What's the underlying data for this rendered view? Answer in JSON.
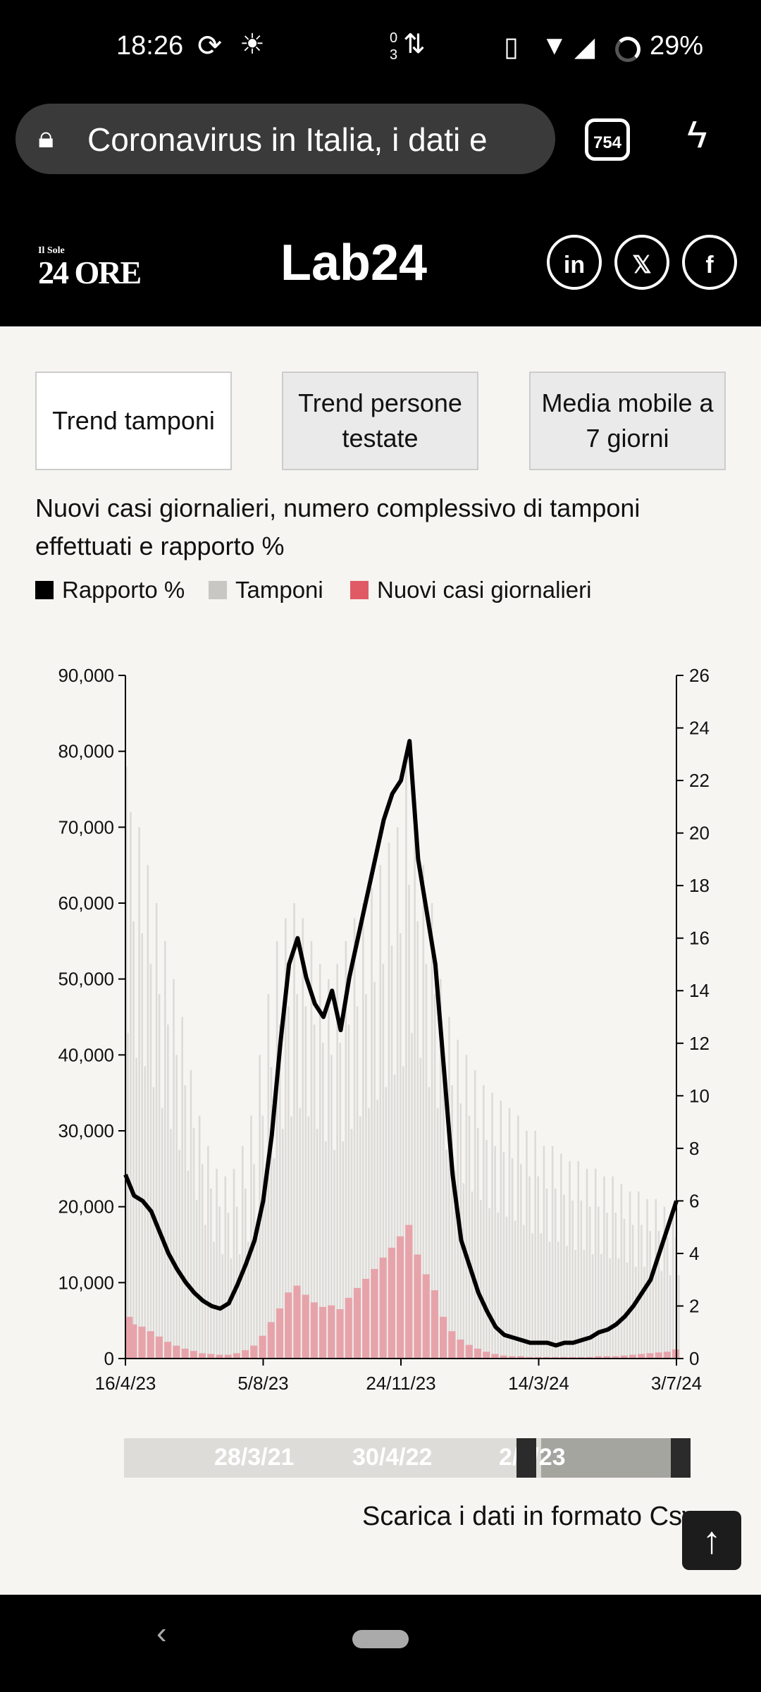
{
  "status_bar": {
    "time": "18:26",
    "data_up": "0",
    "data_down": "3",
    "battery": "29%"
  },
  "browser": {
    "url_title": "Coronavirus in Italia, i dati e",
    "tab_count": "754"
  },
  "header": {
    "logo_left": "Il Sole 24 ORE",
    "logo_left_small": "Il Sole",
    "logo_left_big": "24 ORE",
    "logo_center": "Lab24",
    "social": [
      "in",
      "𝕏",
      "f"
    ]
  },
  "buttons": [
    {
      "label": "Trend tamponi",
      "active": true
    },
    {
      "label": "Trend persone testate",
      "active": false
    },
    {
      "label": "Media mobile a 7 giorni",
      "active": false
    }
  ],
  "chart_title": "Nuovi casi giornalieri, numero complessivo di tamponi effettuati e rapporto %",
  "legend": [
    {
      "label": "Rapporto %",
      "color": "#000000"
    },
    {
      "label": "Tamponi",
      "color": "#c8c7c4"
    },
    {
      "label": "Nuovi casi giornalieri",
      "color": "#e05a66"
    }
  ],
  "chart_data": {
    "type": "bar+line",
    "title": "Nuovi casi giornalieri, numero complessivo di tamponi effettuati e rapporto %",
    "x_ticks": [
      "16/4/23",
      "5/8/23",
      "24/11/23",
      "14/3/24",
      "3/7/24"
    ],
    "x_range": [
      "16/4/23",
      "3/7/24"
    ],
    "x_unit": "week",
    "y_left_ticks": [
      "0",
      "10,000",
      "20,000",
      "30,000",
      "40,000",
      "50,000",
      "60,000",
      "70,000",
      "80,000",
      "90,000"
    ],
    "y_left_range": [
      0,
      90000
    ],
    "y_right_ticks": [
      "0",
      "2",
      "4",
      "6",
      "8",
      "10",
      "12",
      "14",
      "16",
      "18",
      "20",
      "22",
      "24",
      "26"
    ],
    "y_right_range": [
      0,
      26
    ],
    "series": [
      {
        "name": "Tamponi",
        "axis": "left",
        "type": "bar",
        "values": [
          78000,
          72000,
          70000,
          65000,
          60000,
          55000,
          50000,
          45000,
          38000,
          32000,
          28000,
          25000,
          24000,
          25000,
          28000,
          32000,
          40000,
          48000,
          55000,
          58000,
          60000,
          58000,
          55000,
          52000,
          50000,
          52000,
          55000,
          58000,
          60000,
          62000,
          65000,
          68000,
          70000,
          78000,
          72000,
          65000,
          60000,
          50000,
          45000,
          42000,
          40000,
          38000,
          36000,
          35000,
          34000,
          33000,
          32000,
          30000,
          30000,
          28000,
          28000,
          27000,
          26000,
          26000,
          25000,
          25000,
          24000,
          24000,
          23000,
          22000,
          22000,
          21000,
          21000,
          20000,
          20000
        ]
      },
      {
        "name": "Nuovi casi giornalieri",
        "axis": "left",
        "type": "bar",
        "values": [
          5500,
          4500,
          4200,
          3600,
          2900,
          2200,
          1700,
          1300,
          1000,
          700,
          600,
          500,
          500,
          700,
          1100,
          1700,
          3000,
          4800,
          6600,
          8700,
          9600,
          8400,
          7400,
          6800,
          7000,
          6500,
          8000,
          9300,
          10500,
          11800,
          13300,
          14600,
          16100,
          17600,
          13700,
          11100,
          9000,
          5500,
          3600,
          2500,
          1800,
          1300,
          900,
          600,
          400,
          300,
          300,
          200,
          200,
          200,
          200,
          200,
          200,
          200,
          200,
          300,
          300,
          300,
          400,
          500,
          600,
          700,
          800,
          900,
          1200
        ]
      },
      {
        "name": "Rapporto %",
        "axis": "right",
        "type": "line",
        "values": [
          7.0,
          6.2,
          6.0,
          5.6,
          4.8,
          4.0,
          3.4,
          2.9,
          2.5,
          2.2,
          2.0,
          1.9,
          2.1,
          2.8,
          3.6,
          4.5,
          6.0,
          8.5,
          12.0,
          15.0,
          16.0,
          14.5,
          13.5,
          13.0,
          14.0,
          12.5,
          14.5,
          16.0,
          17.5,
          19.0,
          20.5,
          21.5,
          22.0,
          23.5,
          19.0,
          17.0,
          15.0,
          11.0,
          7.0,
          4.5,
          3.5,
          2.5,
          1.8,
          1.2,
          0.9,
          0.8,
          0.7,
          0.6,
          0.6,
          0.6,
          0.5,
          0.6,
          0.6,
          0.7,
          0.8,
          1.0,
          1.1,
          1.3,
          1.6,
          2.0,
          2.5,
          3.0,
          4.0,
          5.0,
          6.0
        ]
      }
    ],
    "grid": false,
    "legend_position": "top-left"
  },
  "range_slider": {
    "labels": [
      "28/3/21",
      "30/4/22",
      "2/6/23"
    ],
    "selection_start_fraction": 0.74,
    "selection_end_fraction": 1.0
  },
  "download_link": "Scarica i dati in formato Csv",
  "scroll_top_icon": "↑"
}
